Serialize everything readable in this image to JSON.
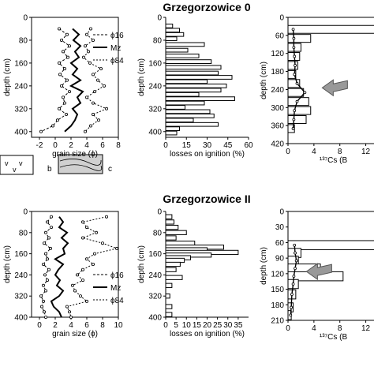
{
  "titles": {
    "top": "Grzegorzowice 0",
    "bottom": "Grzegorzowice II"
  },
  "legend_keys": {
    "b": "b",
    "c": "c"
  },
  "chart_data": [
    {
      "type": "line",
      "panel": "top-grain",
      "xlabel": "grain size (ϕ)",
      "ylabel": "depth (cm)",
      "xlim": [
        -3,
        8
      ],
      "ylim": [
        0,
        420
      ],
      "y_inverted": true,
      "xticks": [
        "-2",
        "0",
        "2",
        "4",
        "6",
        "8"
      ],
      "yticks": [
        "0",
        "80",
        "160",
        "240",
        "320",
        "400"
      ],
      "ytick_values": [
        0,
        80,
        160,
        240,
        320,
        400
      ],
      "xtick_values": [
        -2,
        0,
        2,
        4,
        6,
        8
      ],
      "legend": [
        "ϕ16",
        "Mz",
        "ϕ84"
      ],
      "depth": [
        40,
        60,
        80,
        100,
        120,
        140,
        160,
        180,
        200,
        220,
        240,
        260,
        280,
        300,
        320,
        340,
        360,
        380,
        400
      ],
      "series": [
        {
          "name": "ϕ16",
          "values": [
            0.5,
            1.5,
            0.8,
            1.8,
            1.0,
            1.6,
            0.5,
            1.2,
            0.6,
            1.5,
            0.8,
            1.8,
            1.0,
            1.2,
            0.5,
            1.4,
            0.3,
            -0.3,
            -1.8
          ]
        },
        {
          "name": "Mz",
          "values": [
            2.2,
            3.0,
            2.3,
            3.2,
            2.5,
            3.0,
            2.0,
            2.8,
            2.2,
            3.2,
            2.0,
            3.5,
            2.8,
            3.2,
            2.2,
            2.8,
            2.5,
            2.0,
            1.2
          ]
        },
        {
          "name": "ϕ84",
          "values": [
            4.5,
            4.0,
            4.8,
            3.8,
            4.2,
            3.6,
            4.4,
            5.8,
            4.8,
            5.4,
            6.2,
            5.0,
            4.0,
            4.8,
            6.5,
            4.8,
            5.5,
            4.5,
            3.8
          ]
        }
      ]
    },
    {
      "type": "bar",
      "panel": "top-loi",
      "xlabel": "losses on ignition (%)",
      "ylabel": "depth (cm)",
      "xlim": [
        0,
        60
      ],
      "ylim": [
        0,
        420
      ],
      "y_inverted": true,
      "xticks": [
        "0",
        "15",
        "30",
        "45",
        "60"
      ],
      "yticks": [
        "0",
        "80",
        "160",
        "240",
        "320",
        "400"
      ],
      "ytick_values": [
        0,
        80,
        160,
        240,
        320,
        400
      ],
      "xtick_values": [
        0,
        15,
        30,
        45,
        60
      ],
      "depth": [
        30,
        45,
        60,
        75,
        95,
        115,
        135,
        155,
        175,
        195,
        210,
        225,
        240,
        255,
        270,
        285,
        300,
        315,
        330,
        345,
        360,
        375,
        390,
        405
      ],
      "values": [
        5,
        10,
        13,
        8,
        28,
        16,
        24,
        33,
        40,
        38,
        48,
        30,
        44,
        40,
        24,
        50,
        28,
        14,
        32,
        35,
        20,
        38,
        10,
        8
      ]
    },
    {
      "type": "bar",
      "panel": "top-cs",
      "xlabel": "¹³⁷Cs (B",
      "ylabel": "depth (cm)",
      "xlim": [
        0,
        14
      ],
      "ylim": [
        0,
        420
      ],
      "y_inverted": true,
      "xticks": [
        "0",
        "4",
        "8",
        "12"
      ],
      "yticks": [
        "0",
        "60",
        "120",
        "180",
        "240",
        "300",
        "360",
        "420"
      ],
      "ytick_values": [
        0,
        60,
        120,
        180,
        240,
        300,
        360,
        420
      ],
      "xtick_values": [
        0,
        4,
        8,
        12
      ],
      "depth": [
        40,
        70,
        100,
        130,
        160,
        190,
        220,
        250,
        280,
        310,
        340,
        370
      ],
      "values": [
        14,
        3.5,
        2,
        1.8,
        1.5,
        1.2,
        1.8,
        2.4,
        3.2,
        3.5,
        2.8,
        1.0
      ],
      "line_values": [
        0.8,
        0.9,
        0.9,
        1.0,
        1.1,
        1.0,
        1.4,
        2.6,
        1.4,
        1.0,
        0.9,
        0.8
      ]
    },
    {
      "type": "line",
      "panel": "bottom-grain",
      "xlabel": "grain size (ϕ)",
      "ylabel": "depth (cm)",
      "xlim": [
        -1,
        10
      ],
      "ylim": [
        0,
        400
      ],
      "y_inverted": true,
      "xticks": [
        "0",
        "2",
        "4",
        "6",
        "8",
        "10"
      ],
      "yticks": [
        "0",
        "80",
        "160",
        "240",
        "320",
        "400"
      ],
      "ytick_values": [
        0,
        80,
        160,
        240,
        320,
        400
      ],
      "xtick_values": [
        0,
        2,
        4,
        6,
        8,
        10
      ],
      "legend": [
        "ϕ16",
        "Mz",
        "ϕ84"
      ],
      "depth": [
        20,
        40,
        60,
        80,
        100,
        120,
        140,
        160,
        180,
        200,
        220,
        240,
        260,
        280,
        300,
        320,
        340,
        360,
        380,
        400
      ],
      "series": [
        {
          "name": "ϕ16",
          "values": [
            1.5,
            1.0,
            1.5,
            0.8,
            1.2,
            0.6,
            1.4,
            0.8,
            1.0,
            0.5,
            1.2,
            0.7,
            1.0,
            0.5,
            0.8,
            0.2,
            0.5,
            0.3,
            0.6,
            0.8
          ]
        },
        {
          "name": "Mz",
          "values": [
            2.5,
            3.0,
            2.5,
            3.5,
            2.8,
            3.6,
            3.0,
            3.2,
            2.0,
            3.0,
            2.4,
            2.0,
            2.6,
            2.2,
            3.0,
            2.5,
            1.5,
            1.8,
            2.5,
            2.8
          ]
        },
        {
          "name": "ϕ84",
          "values": [
            8.5,
            5.5,
            6.0,
            7.2,
            5.5,
            8.0,
            9.8,
            7.0,
            6.0,
            6.8,
            5.5,
            4.8,
            5.5,
            4.2,
            4.5,
            5.2,
            6.0,
            3.5,
            3.8,
            4.0
          ]
        }
      ]
    },
    {
      "type": "bar",
      "panel": "bottom-loi",
      "xlabel": "losses on ignition (%)",
      "ylabel": "depth (cm)",
      "xlim": [
        0,
        40
      ],
      "ylim": [
        0,
        400
      ],
      "y_inverted": true,
      "xticks": [
        "0",
        "5",
        "10",
        "15",
        "20",
        "25",
        "30",
        "35"
      ],
      "yticks": [
        "0",
        "80",
        "160",
        "240",
        "320",
        "400"
      ],
      "ytick_values": [
        0,
        80,
        160,
        240,
        320,
        400
      ],
      "xtick_values": [
        0,
        5,
        10,
        15,
        20,
        25,
        30,
        35
      ],
      "depth": [
        20,
        40,
        60,
        80,
        100,
        120,
        135,
        145,
        155,
        165,
        175,
        185,
        200,
        220,
        250,
        280,
        320,
        360,
        390
      ],
      "values": [
        3,
        4,
        6,
        10,
        5,
        14,
        28,
        20,
        35,
        22,
        12,
        9,
        7,
        5,
        8,
        3,
        2,
        3,
        3
      ]
    },
    {
      "type": "bar",
      "panel": "bottom-cs",
      "xlabel": "¹³⁷Cs (B",
      "ylabel": "depth (cm)",
      "xlim": [
        0,
        14
      ],
      "ylim": [
        0,
        210
      ],
      "y_inverted": true,
      "xticks": [
        "0",
        "4",
        "8",
        "12"
      ],
      "yticks": [
        "0",
        "30",
        "60",
        "90",
        "120",
        "150",
        "180",
        "210"
      ],
      "ytick_values": [
        0,
        30,
        60,
        90,
        120,
        150,
        180,
        210
      ],
      "xtick_values": [
        0,
        4,
        8,
        12
      ],
      "depth": [
        65,
        80,
        95,
        110,
        125,
        140,
        160,
        185,
        200
      ],
      "values": [
        14,
        2.0,
        1.6,
        5.0,
        8.5,
        1.6,
        1.2,
        0.8,
        0.5
      ],
      "line_values": [
        1.0,
        1.1,
        1.3,
        1.1,
        0.9,
        0.8,
        0.6,
        0.5,
        0.4
      ]
    }
  ]
}
